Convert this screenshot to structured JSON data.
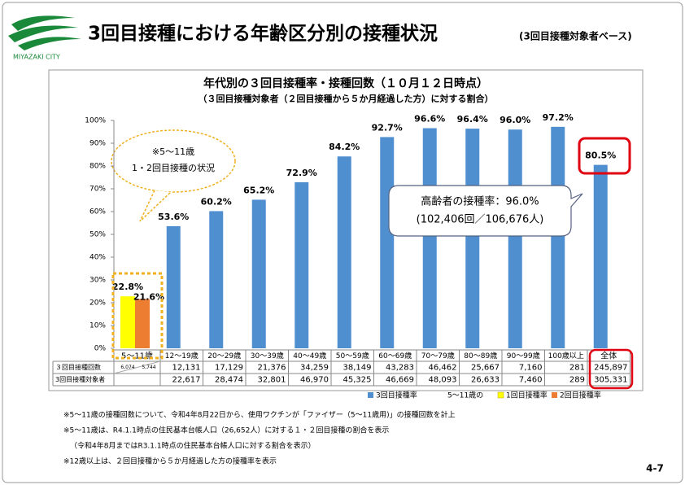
{
  "logo": "MIYAZAKI CITY",
  "header": {
    "title": "3回目接種における年齢区分別の接種状況",
    "subtitle": "(3回目接種対象者ベース)"
  },
  "chart_data": {
    "type": "bar",
    "title": "年代別の３回目接種率・接種回数（１０月１２日時点）",
    "subtitle": "（３回目接種対象者（２回目接種から５か月経過した方）に対する割合）",
    "categories": [
      "5～11歳",
      "12～19歳",
      "20～29歳",
      "30～39歳",
      "40～49歳",
      "50～59歳",
      "60～69歳",
      "70～79歳",
      "80～89歳",
      "90～99歳",
      "100歳以上",
      "全体"
    ],
    "series": [
      {
        "name": "3回目接種率",
        "color": "#4f8fd0",
        "values": [
          null,
          53.6,
          60.2,
          65.2,
          72.9,
          84.2,
          92.7,
          96.6,
          96.4,
          96.0,
          97.2,
          80.5
        ],
        "value_labels": [
          null,
          "53.6%",
          "60.2%",
          "65.2%",
          "72.9%",
          "84.2%",
          "92.7%",
          "96.6%",
          "96.4%",
          "96.0%",
          "97.2%",
          "80.5%"
        ]
      },
      {
        "name": "1回目接種率",
        "color": "#ffff00",
        "values": [
          22.8,
          null,
          null,
          null,
          null,
          null,
          null,
          null,
          null,
          null,
          null,
          null
        ],
        "value_labels": [
          "22.8%",
          null,
          null,
          null,
          null,
          null,
          null,
          null,
          null,
          null,
          null,
          null
        ]
      },
      {
        "name": "2回目接種率",
        "color": "#ed7d31",
        "values": [
          21.6,
          null,
          null,
          null,
          null,
          null,
          null,
          null,
          null,
          null,
          null,
          null
        ],
        "value_labels": [
          "21.6%",
          null,
          null,
          null,
          null,
          null,
          null,
          null,
          null,
          null,
          null,
          null
        ]
      }
    ],
    "legend_prefix": "5～11歳の",
    "ylim": [
      0,
      100
    ],
    "yticks": [
      {
        "value": 0,
        "label": "0%"
      },
      {
        "value": 10,
        "label": "10%"
      },
      {
        "value": 20,
        "label": "20%"
      },
      {
        "value": 30,
        "label": "30%"
      },
      {
        "value": 40,
        "label": "40%"
      },
      {
        "value": 50,
        "label": "50%"
      },
      {
        "value": 60,
        "label": "60%"
      },
      {
        "value": 70,
        "label": "70%"
      },
      {
        "value": 80,
        "label": "80%"
      },
      {
        "value": 90,
        "label": "90%"
      },
      {
        "value": 100,
        "label": "100%"
      }
    ],
    "grid": false,
    "table": {
      "rows": [
        {
          "label": "３回目接種回数",
          "cells": [
            [
              "6,074",
              "5,744"
            ],
            "12,131",
            "17,129",
            "21,376",
            "34,259",
            "38,149",
            "43,283",
            "46,462",
            "25,667",
            "7,160",
            "281",
            "245,897"
          ]
        },
        {
          "label": "3回目接種対象者",
          "cells": [
            null,
            "22,617",
            "28,474",
            "32,801",
            "46,970",
            "45,325",
            "46,669",
            "48,093",
            "26,633",
            "7,460",
            "289",
            "305,331"
          ]
        }
      ]
    },
    "annotations": {
      "child": [
        "※5～11歳",
        "1・2回目接種の状況"
      ],
      "elderly": [
        "高齢者の接種率：96.0%",
        "(102,406回／106,676人)"
      ]
    }
  },
  "notes": [
    "※5～11歳の接種回数について、令和4年8月22日から、使用ワクチンが「ファイザー（5～11歳用)」の接種回数を計上",
    "※5～11歳は、R4.1.1時点の住民基本台帳人口（26,652人）に対する１・２回目接種の割合を表示",
    "（令和4年8月まではR3.1.1時点の住民基本台帳人口に対する割合を表示）",
    "※12歳以上は、２回目接種から５か月経過した方の接種率を表示"
  ],
  "page_number": "4-7"
}
